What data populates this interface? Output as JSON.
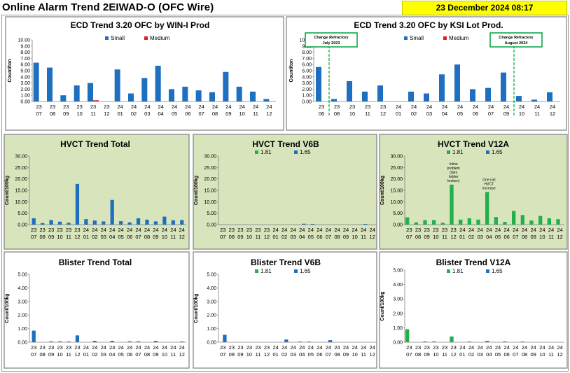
{
  "header": {
    "title": "Online Alarm Trend 2EIWAD-O (OFC Wire)",
    "timestamp": "23 December 2024 08:17"
  },
  "colors": {
    "blue": "#1f6fc0",
    "red": "#e02020",
    "green": "#21b04b",
    "panel_green": "#d8e4bc",
    "vline": "#00a040"
  },
  "chart_data": [
    {
      "id": "ecd-win",
      "type": "bar",
      "title": "ECD Trend 3.20 OFC by WIN-I Prod",
      "ylabel": "Count/ton",
      "ylim": [
        0,
        10
      ],
      "ystep": 1,
      "ytick_decimals": 2,
      "grid": false,
      "legend_position": "top",
      "categories": [
        [
          "23",
          "07"
        ],
        [
          "23",
          "08"
        ],
        [
          "23",
          "09"
        ],
        [
          "23",
          "10"
        ],
        [
          "23",
          "11"
        ],
        [
          "23",
          "12"
        ],
        [
          "24",
          "01"
        ],
        [
          "24",
          "02"
        ],
        [
          "24",
          "03"
        ],
        [
          "24",
          "04"
        ],
        [
          "24",
          "05"
        ],
        [
          "24",
          "06"
        ],
        [
          "24",
          "07"
        ],
        [
          "24",
          "08"
        ],
        [
          "24",
          "09"
        ],
        [
          "24",
          "10"
        ],
        [
          "24",
          "11"
        ],
        [
          "24",
          "12"
        ]
      ],
      "series": [
        {
          "name": "Small",
          "color": "#1f6fc0",
          "values": [
            6.3,
            5.5,
            1.0,
            2.6,
            3.0,
            0,
            5.2,
            1.3,
            3.8,
            5.8,
            2.0,
            2.4,
            1.8,
            1.5,
            4.8,
            2.4,
            1.6,
            0.4
          ]
        },
        {
          "name": "Medium",
          "color": "#e02020",
          "values": [
            0,
            0,
            0,
            0,
            0.2,
            0,
            0,
            0,
            0,
            0,
            0,
            0,
            0,
            0,
            0,
            0,
            0,
            0
          ]
        }
      ]
    },
    {
      "id": "ecd-ksi",
      "type": "bar",
      "title": "ECD Trend 3.20 OFC by KSI Lot Prod.",
      "ylabel": "Count/ton",
      "ylim": [
        0,
        10
      ],
      "ystep": 1,
      "ytick_decimals": 2,
      "grid": false,
      "legend_position": "top",
      "categories": [
        [
          "23",
          "06"
        ],
        [
          "23",
          "08"
        ],
        [
          "23",
          "10"
        ],
        [
          "23",
          "11"
        ],
        [
          "23",
          "12"
        ],
        [
          "24",
          "01"
        ],
        [
          "24",
          "02"
        ],
        [
          "24",
          "03"
        ],
        [
          "24",
          "04"
        ],
        [
          "24",
          "05"
        ],
        [
          "24",
          "06"
        ],
        [
          "24",
          "07"
        ],
        [
          "24",
          "09"
        ],
        [
          "24",
          "10"
        ],
        [
          "24",
          "11"
        ],
        [
          "24",
          "12"
        ]
      ],
      "series": [
        {
          "name": "Small",
          "color": "#1f6fc0",
          "values": [
            5.6,
            0.4,
            3.3,
            1.6,
            2.6,
            0,
            1.6,
            1.3,
            4.4,
            6.0,
            2.0,
            2.2,
            4.7,
            0.9,
            0.3,
            1.5
          ]
        },
        {
          "name": "Medium",
          "color": "#e02020",
          "values": [
            0,
            0,
            0,
            0,
            0,
            0,
            0,
            0,
            0,
            0,
            0,
            0,
            0,
            0,
            0,
            0
          ]
        }
      ],
      "markers": [
        {
          "label": [
            "Change Refractory",
            "July 2023"
          ],
          "between": [
            0,
            1
          ]
        },
        {
          "label": [
            "Change Refractory",
            "August 2024"
          ],
          "between": [
            12,
            13
          ]
        }
      ]
    },
    {
      "id": "hvct-total",
      "type": "bar",
      "title": "HVCT Trend Total",
      "ylabel": "Count/100kg",
      "ylim": [
        0,
        30
      ],
      "ystep": 5,
      "ytick_decimals": 2,
      "grid": false,
      "categories": [
        [
          "23",
          "07"
        ],
        [
          "23",
          "08"
        ],
        [
          "23",
          "09"
        ],
        [
          "23",
          "10"
        ],
        [
          "23",
          "11"
        ],
        [
          "23",
          "12"
        ],
        [
          "24",
          "01"
        ],
        [
          "24",
          "02"
        ],
        [
          "24",
          "03"
        ],
        [
          "24",
          "04"
        ],
        [
          "24",
          "05"
        ],
        [
          "24",
          "06"
        ],
        [
          "24",
          "07"
        ],
        [
          "24",
          "08"
        ],
        [
          "24",
          "09"
        ],
        [
          "24",
          "10"
        ],
        [
          "24",
          "11"
        ],
        [
          "24",
          "12"
        ]
      ],
      "series": [
        {
          "name": "",
          "color": "#1f6fc0",
          "values": [
            2.8,
            0.7,
            2.0,
            1.3,
            0.8,
            17.8,
            2.4,
            1.8,
            1.4,
            10.8,
            1.5,
            1.0,
            2.8,
            2.2,
            1.4,
            3.5,
            1.9,
            2.0
          ]
        }
      ]
    },
    {
      "id": "hvct-v6b",
      "type": "bar",
      "title": "HVCT Trend V6B",
      "ylabel": "Count/100kg",
      "ylim": [
        0,
        30
      ],
      "ystep": 5,
      "ytick_decimals": 2,
      "grid": false,
      "legend_position": "top",
      "categories": [
        [
          "23",
          "07"
        ],
        [
          "23",
          "08"
        ],
        [
          "23",
          "09"
        ],
        [
          "23",
          "10"
        ],
        [
          "23",
          "11"
        ],
        [
          "23",
          "12"
        ],
        [
          "24",
          "01"
        ],
        [
          "24",
          "02"
        ],
        [
          "24",
          "03"
        ],
        [
          "24",
          "04"
        ],
        [
          "24",
          "05"
        ],
        [
          "24",
          "06"
        ],
        [
          "24",
          "07"
        ],
        [
          "24",
          "08"
        ],
        [
          "24",
          "09"
        ],
        [
          "24",
          "10"
        ],
        [
          "24",
          "11"
        ],
        [
          "24",
          "12"
        ]
      ],
      "series": [
        {
          "name": "1.81",
          "color": "#21b04b",
          "values": [
            0,
            0,
            0,
            0,
            0,
            0,
            0,
            0,
            0,
            0,
            0,
            0,
            0,
            0,
            0,
            0,
            0,
            0
          ]
        },
        {
          "name": "1.65",
          "color": "#1f6fc0",
          "values": [
            0,
            0,
            0,
            0,
            0,
            0,
            0,
            0,
            0,
            0.4,
            0.3,
            0,
            0,
            0,
            0,
            0,
            0.3,
            0
          ]
        }
      ]
    },
    {
      "id": "hvct-v12a",
      "type": "bar",
      "title": "HVCT Trend V12A",
      "ylabel": "Count/100kg",
      "ylim": [
        0,
        30
      ],
      "ystep": 5,
      "ytick_decimals": 2,
      "grid": false,
      "legend_position": "top",
      "categories": [
        [
          "23",
          "07"
        ],
        [
          "23",
          "08"
        ],
        [
          "23",
          "09"
        ],
        [
          "23",
          "10"
        ],
        [
          "23",
          "11"
        ],
        [
          "23",
          "12"
        ],
        [
          "24",
          "01"
        ],
        [
          "24",
          "02"
        ],
        [
          "24",
          "03"
        ],
        [
          "24",
          "04"
        ],
        [
          "24",
          "05"
        ],
        [
          "24",
          "06"
        ],
        [
          "24",
          "07"
        ],
        [
          "24",
          "08"
        ],
        [
          "24",
          "09"
        ],
        [
          "24",
          "10"
        ],
        [
          "24",
          "11"
        ],
        [
          "24",
          "12"
        ]
      ],
      "series": [
        {
          "name": "1.81",
          "color": "#21b04b",
          "values": [
            3.2,
            1.0,
            2.0,
            2.0,
            0.8,
            17.5,
            2.2,
            2.8,
            2.2,
            14.3,
            3.3,
            1.2,
            6.0,
            4.2,
            1.8,
            3.8,
            2.8,
            2.4
          ]
        },
        {
          "name": "1.65",
          "color": "#1f6fc0",
          "values": [
            0,
            0,
            0,
            0,
            0,
            0,
            0,
            0,
            0,
            0,
            0,
            0,
            0,
            0,
            0,
            0,
            0,
            0
          ]
        }
      ],
      "annotations": [
        {
          "category": 5,
          "lines": [
            "Inline",
            "problem",
            "(dies",
            "holder",
            "broken)"
          ]
        },
        {
          "category": 9,
          "lines": [
            "One coil",
            "HVCT",
            "increase"
          ]
        }
      ]
    },
    {
      "id": "blister-total",
      "type": "bar",
      "title": "Blister Trend Total",
      "ylabel": "Count/100kg",
      "ylim": [
        0,
        5
      ],
      "ystep": 1,
      "ytick_decimals": 2,
      "grid": false,
      "categories": [
        [
          "23",
          "07"
        ],
        [
          "23",
          "08"
        ],
        [
          "23",
          "09"
        ],
        [
          "23",
          "10"
        ],
        [
          "23",
          "11"
        ],
        [
          "23",
          "12"
        ],
        [
          "24",
          "01"
        ],
        [
          "24",
          "02"
        ],
        [
          "24",
          "03"
        ],
        [
          "24",
          "04"
        ],
        [
          "24",
          "05"
        ],
        [
          "24",
          "06"
        ],
        [
          "24",
          "07"
        ],
        [
          "24",
          "08"
        ],
        [
          "24",
          "09"
        ],
        [
          "24",
          "10"
        ],
        [
          "24",
          "11"
        ],
        [
          "24",
          "12"
        ]
      ],
      "series": [
        {
          "name": "",
          "color": "#1f6fc0",
          "values": [
            0.85,
            0,
            0.06,
            0.06,
            0.05,
            0.5,
            0,
            0.1,
            0,
            0.1,
            0,
            0.06,
            0.06,
            0,
            0.1,
            0,
            0,
            0.05
          ]
        }
      ]
    },
    {
      "id": "blister-v6b",
      "type": "bar",
      "title": "Blister Trend V6B",
      "ylabel": "Count/100kg",
      "ylim": [
        0,
        5
      ],
      "ystep": 1,
      "ytick_decimals": 2,
      "grid": false,
      "legend_position": "top",
      "categories": [
        [
          "23",
          "07"
        ],
        [
          "23",
          "08"
        ],
        [
          "23",
          "09"
        ],
        [
          "23",
          "10"
        ],
        [
          "23",
          "11"
        ],
        [
          "23",
          "12"
        ],
        [
          "24",
          "01"
        ],
        [
          "24",
          "02"
        ],
        [
          "24",
          "03"
        ],
        [
          "24",
          "04"
        ],
        [
          "24",
          "05"
        ],
        [
          "24",
          "06"
        ],
        [
          "24",
          "07"
        ],
        [
          "24",
          "08"
        ],
        [
          "24",
          "09"
        ],
        [
          "24",
          "10"
        ],
        [
          "24",
          "11"
        ],
        [
          "24",
          "12"
        ]
      ],
      "series": [
        {
          "name": "1.81",
          "color": "#21b04b",
          "values": [
            0,
            0,
            0,
            0,
            0,
            0,
            0,
            0,
            0,
            0.05,
            0.05,
            0,
            0,
            0,
            0,
            0,
            0,
            0
          ]
        },
        {
          "name": "1.65",
          "color": "#1f6fc0",
          "values": [
            0.55,
            0,
            0,
            0,
            0,
            0,
            0,
            0.2,
            0,
            0,
            0,
            0,
            0.15,
            0,
            0,
            0,
            0,
            0
          ]
        }
      ]
    },
    {
      "id": "blister-v12a",
      "type": "bar",
      "title": "Blister Trend V12A",
      "ylabel": "Count/100kg",
      "ylim": [
        0,
        5
      ],
      "ystep": 1,
      "ytick_decimals": 2,
      "grid": false,
      "legend_position": "top",
      "categories": [
        [
          "23",
          "07"
        ],
        [
          "23",
          "08"
        ],
        [
          "23",
          "09"
        ],
        [
          "23",
          "10"
        ],
        [
          "23",
          "11"
        ],
        [
          "23",
          "12"
        ],
        [
          "24",
          "01"
        ],
        [
          "24",
          "02"
        ],
        [
          "24",
          "03"
        ],
        [
          "24",
          "04"
        ],
        [
          "24",
          "05"
        ],
        [
          "24",
          "06"
        ],
        [
          "24",
          "07"
        ],
        [
          "24",
          "08"
        ],
        [
          "24",
          "09"
        ],
        [
          "24",
          "10"
        ],
        [
          "24",
          "11"
        ],
        [
          "24",
          "12"
        ]
      ],
      "series": [
        {
          "name": "1.81",
          "color": "#21b04b",
          "values": [
            0.9,
            0,
            0.06,
            0.06,
            0,
            0.4,
            0,
            0.05,
            0,
            0.1,
            0,
            0.06,
            0,
            0.05,
            0,
            0,
            0,
            0
          ]
        },
        {
          "name": "1.65",
          "color": "#1f6fc0",
          "values": [
            0,
            0,
            0,
            0,
            0,
            0,
            0,
            0,
            0,
            0,
            0,
            0,
            0,
            0,
            0,
            0,
            0,
            0
          ]
        }
      ]
    }
  ]
}
